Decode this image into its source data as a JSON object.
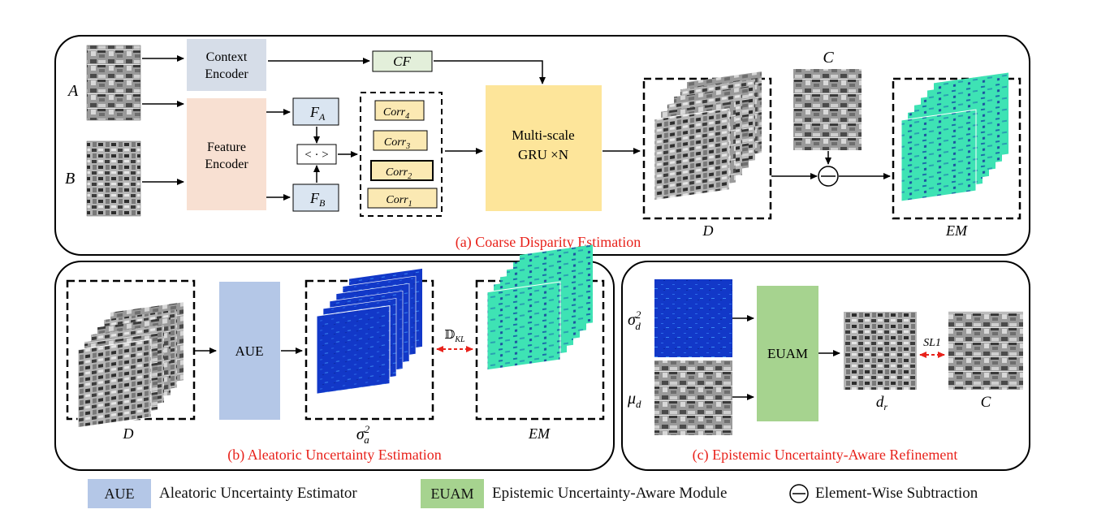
{
  "colors": {
    "caption_red": "#e8221b",
    "context_encoder": "#d6dde8",
    "feature_encoder": "#f8e0d2",
    "feature_small": "#dae5f1",
    "cf_box": "#e3efda",
    "corr_box": "#fbe9b3",
    "gru_box": "#fde59a",
    "aue_box": "#b4c7e7",
    "euam_box": "#a6d38f",
    "teal_map": "#3ee3b4",
    "uncertainty_blue": "#1238c8"
  },
  "inputs": {
    "a": "A",
    "b": "B"
  },
  "panel_a": {
    "caption": "(a) Coarse Disparity Estimation",
    "context_encoder": [
      "Context",
      "Encoder"
    ],
    "feature_encoder": [
      "Feature",
      "Encoder"
    ],
    "cf_label": "CF",
    "fa_label": "F",
    "fa_sub": "A",
    "fb_label": "F",
    "fb_sub": "B",
    "dot_product": "< · >",
    "corr": [
      {
        "base": "Corr",
        "sub": "4"
      },
      {
        "base": "Corr",
        "sub": "3"
      },
      {
        "base": "Corr",
        "sub": "2"
      },
      {
        "base": "Corr",
        "sub": "1"
      }
    ],
    "gru_line1": "Multi-scale",
    "gru_line2": "GRU ×N",
    "d_label": "D",
    "c_label": "C",
    "em_label": "EM"
  },
  "panel_b": {
    "caption": "(b) Aleatoric Uncertainty Estimation",
    "d_label": "D",
    "aue_label": "AUE",
    "sigma_a": "σ",
    "sigma_a_sup": "2",
    "sigma_a_sub": "a",
    "kl_label": "𝔻",
    "kl_sub": "KL",
    "em_label": "EM"
  },
  "panel_c": {
    "caption": "(c) Epistemic Uncertainty-Aware Refinement",
    "sigma_d": "σ",
    "sigma_d_sup": "2",
    "sigma_d_sub": "d",
    "mu_d": "μ",
    "mu_d_sub": "d",
    "euam_label": "EUAM",
    "sl1_label": "SL1",
    "dr_label": "d",
    "dr_sub": "r",
    "c_label": "C"
  },
  "legend": [
    {
      "box": "AUE",
      "text": "Aleatoric Uncertainty Estimator",
      "color": "#b4c7e7"
    },
    {
      "box": "EUAM",
      "text": "Epistemic Uncertainty-Aware Module",
      "color": "#a6d38f"
    },
    {
      "box": "",
      "text": "Element-Wise Subtraction",
      "color": ""
    }
  ]
}
